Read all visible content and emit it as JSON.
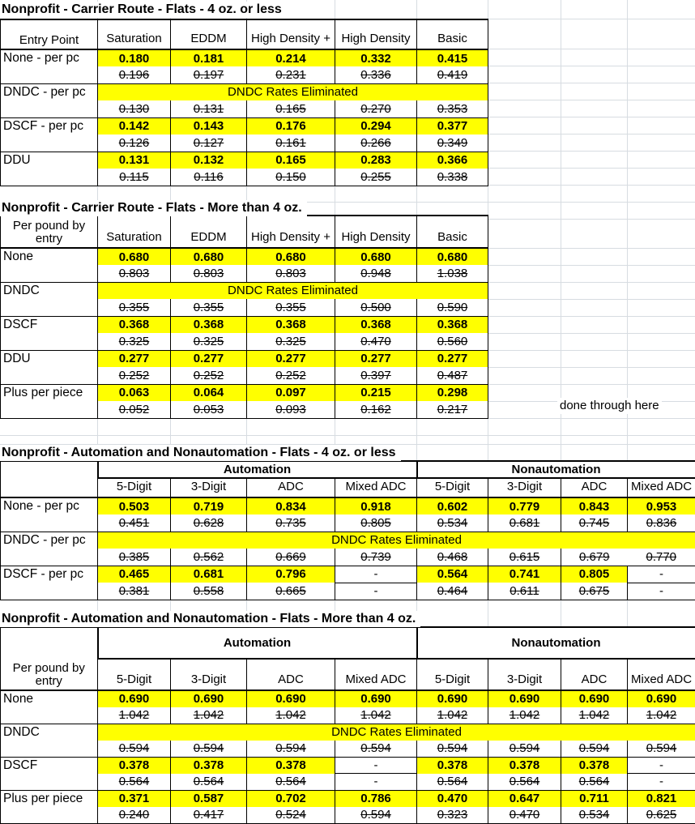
{
  "sheet": {
    "note": "done through here",
    "dndc_banner": "DNDC Rates Eliminated",
    "colors": {
      "highlight": "#ffff00",
      "grid": "#d7dce1",
      "line": "#000000"
    },
    "tables": [
      {
        "title": "Nonprofit - Carrier Route - Flats - 4 oz. or less",
        "label_header": "Entry Point",
        "columns": [
          "Saturation",
          "EDDM",
          "High Density +",
          "High Density",
          "Basic"
        ],
        "rows": [
          {
            "label": "None - per pc",
            "eliminated": false,
            "current": [
              "0.180",
              "0.181",
              "0.214",
              "0.332",
              "0.415"
            ],
            "old": [
              "0.196",
              "0.197",
              "0.231",
              "0.336",
              "0.419"
            ]
          },
          {
            "label": "DNDC - per pc",
            "eliminated": true,
            "old": [
              "0.130",
              "0.131",
              "0.165",
              "0.270",
              "0.353"
            ]
          },
          {
            "label": "DSCF - per pc",
            "eliminated": false,
            "current": [
              "0.142",
              "0.143",
              "0.176",
              "0.294",
              "0.377"
            ],
            "old": [
              "0.126",
              "0.127",
              "0.161",
              "0.266",
              "0.349"
            ]
          },
          {
            "label": "DDU",
            "eliminated": false,
            "current": [
              "0.131",
              "0.132",
              "0.165",
              "0.283",
              "0.366"
            ],
            "old": [
              "0.115",
              "0.116",
              "0.150",
              "0.255",
              "0.338"
            ]
          }
        ]
      },
      {
        "title": "Nonprofit - Carrier Route - Flats - More than 4 oz.",
        "label_header": "Per pound by entry",
        "columns": [
          "Saturation",
          "EDDM",
          "High Density +",
          "High Density",
          "Basic"
        ],
        "rows": [
          {
            "label": "None",
            "eliminated": false,
            "current": [
              "0.680",
              "0.680",
              "0.680",
              "0.680",
              "0.680"
            ],
            "old": [
              "0.803",
              "0.803",
              "0.803",
              "0.948",
              "1.038"
            ]
          },
          {
            "label": "DNDC",
            "eliminated": true,
            "old": [
              "0.355",
              "0.355",
              "0.355",
              "0.500",
              "0.590"
            ]
          },
          {
            "label": "DSCF",
            "eliminated": false,
            "current": [
              "0.368",
              "0.368",
              "0.368",
              "0.368",
              "0.368"
            ],
            "old": [
              "0.325",
              "0.325",
              "0.325",
              "0.470",
              "0.560"
            ]
          },
          {
            "label": "DDU",
            "eliminated": false,
            "current": [
              "0.277",
              "0.277",
              "0.277",
              "0.277",
              "0.277"
            ],
            "old": [
              "0.252",
              "0.252",
              "0.252",
              "0.397",
              "0.487"
            ]
          },
          {
            "label": "Plus per piece",
            "eliminated": false,
            "current": [
              "0.063",
              "0.064",
              "0.097",
              "0.215",
              "0.298"
            ],
            "old": [
              "0.052",
              "0.053",
              "0.093",
              "0.162",
              "0.217"
            ]
          }
        ]
      },
      {
        "title": "Nonprofit - Automation and Nonautomation - Flats - 4 oz. or less",
        "label_header": "",
        "groups": [
          "Automation",
          "Nonautomation"
        ],
        "columns": [
          "5-Digit",
          "3-Digit",
          "ADC",
          "Mixed ADC",
          "5-Digit",
          "3-Digit",
          "ADC",
          "Mixed ADC"
        ],
        "rows": [
          {
            "label": "None - per pc",
            "eliminated": false,
            "current": [
              "0.503",
              "0.719",
              "0.834",
              "0.918",
              "0.602",
              "0.779",
              "0.843",
              "0.953"
            ],
            "old": [
              "0.451",
              "0.628",
              "0.735",
              "0.805",
              "0.534",
              "0.681",
              "0.745",
              "0.836"
            ]
          },
          {
            "label": "DNDC - per pc",
            "eliminated": true,
            "old": [
              "0.385",
              "0.562",
              "0.669",
              "0.739",
              "0.468",
              "0.615",
              "0.679",
              "0.770"
            ]
          },
          {
            "label": "DSCF - per pc",
            "eliminated": false,
            "current": [
              "0.465",
              "0.681",
              "0.796",
              "-",
              "0.564",
              "0.741",
              "0.805",
              "-"
            ],
            "old": [
              "0.381",
              "0.558",
              "0.665",
              "-",
              "0.464",
              "0.611",
              "0.675",
              "-"
            ]
          }
        ]
      },
      {
        "title": "Nonprofit - Automation and Nonautomation - Flats - More than 4 oz.",
        "label_header": "Per pound by entry",
        "groups": [
          "Automation",
          "Nonautomation"
        ],
        "columns": [
          "5-Digit",
          "3-Digit",
          "ADC",
          "Mixed ADC",
          "5-Digit",
          "3-Digit",
          "ADC",
          "Mixed ADC"
        ],
        "rows": [
          {
            "label": "None",
            "eliminated": false,
            "current": [
              "0.690",
              "0.690",
              "0.690",
              "0.690",
              "0.690",
              "0.690",
              "0.690",
              "0.690"
            ],
            "old": [
              "1.042",
              "1.042",
              "1.042",
              "1.042",
              "1.042",
              "1.042",
              "1.042",
              "1.042"
            ]
          },
          {
            "label": "DNDC",
            "eliminated": true,
            "old": [
              "0.594",
              "0.594",
              "0.594",
              "0.594",
              "0.594",
              "0.594",
              "0.594",
              "0.594"
            ]
          },
          {
            "label": "DSCF",
            "eliminated": false,
            "current": [
              "0.378",
              "0.378",
              "0.378",
              "-",
              "0.378",
              "0.378",
              "0.378",
              "-"
            ],
            "old": [
              "0.564",
              "0.564",
              "0.564",
              "-",
              "0.564",
              "0.564",
              "0.564",
              "-"
            ]
          },
          {
            "label": "Plus per piece",
            "eliminated": false,
            "current": [
              "0.371",
              "0.587",
              "0.702",
              "0.786",
              "0.470",
              "0.647",
              "0.711",
              "0.821"
            ],
            "old": [
              "0.240",
              "0.417",
              "0.524",
              "0.594",
              "0.323",
              "0.470",
              "0.534",
              "0.625"
            ]
          }
        ]
      }
    ]
  }
}
